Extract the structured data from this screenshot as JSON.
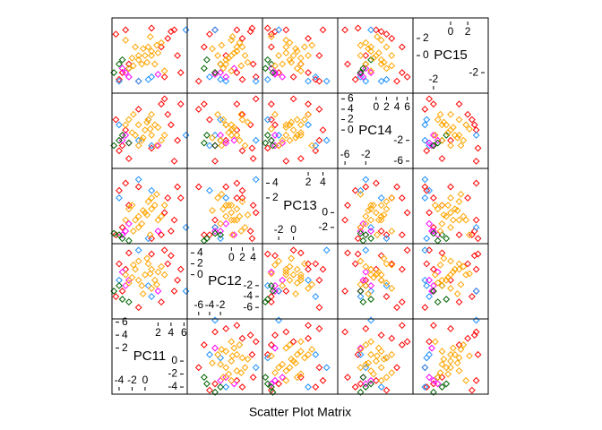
{
  "chart_data": {
    "type": "splom",
    "title": "Scatter Plot Matrix",
    "variables": [
      "PC11",
      "PC12",
      "PC13",
      "PC14",
      "PC15"
    ],
    "axes": [
      {
        "lim": [
          -5.1,
          6.5
        ],
        "upper_ticks": [
          2,
          4,
          6
        ],
        "lower_ticks": [
          -4,
          -2,
          0
        ]
      },
      {
        "lim": [
          -8.1,
          5.7
        ],
        "upper_ticks": [
          0,
          2,
          4
        ],
        "lower_ticks": [
          -6,
          -4,
          -2
        ]
      },
      {
        "lim": [
          -4.2,
          6.0
        ],
        "upper_ticks": [
          2,
          4
        ],
        "lower_ticks": [
          -2,
          0
        ]
      },
      {
        "lim": [
          -7.4,
          7.1
        ],
        "upper_ticks": [
          0,
          2,
          4,
          6
        ],
        "lower_ticks": [
          -6,
          -2
        ]
      },
      {
        "lim": [
          -4.4,
          4.4
        ],
        "upper_ticks": [
          0,
          2
        ],
        "lower_ticks": [
          -2
        ]
      }
    ],
    "series": [
      {
        "color": "#FF0000",
        "values": [
          [
            3.5,
            2,
            2,
            3,
            2
          ],
          [
            -3.5,
            -3,
            -2,
            -3,
            -2
          ],
          [
            4,
            3.5,
            -2.5,
            1,
            2.8
          ],
          [
            -4,
            2,
            3,
            -4,
            -2.8
          ],
          [
            2.5,
            -5,
            -3,
            5,
            1
          ],
          [
            -2.5,
            4,
            1,
            -5.5,
            -1
          ],
          [
            5,
            -1,
            3.5,
            -2,
            0
          ],
          [
            -4.5,
            -4,
            -3,
            2,
            2.5
          ],
          [
            3,
            4.5,
            0,
            6,
            -2.5
          ],
          [
            4.5,
            -3,
            -1,
            -6,
            3
          ],
          [
            -1,
            -6,
            3.5,
            4,
            -3
          ],
          [
            1,
            3.8,
            -3.5,
            -3.5,
            3.2
          ],
          [
            5.5,
            1,
            2,
            5,
            -2
          ],
          [
            -3,
            1,
            4,
            0,
            3
          ]
        ]
      },
      {
        "color": "#1E90FF",
        "values": [
          [
            6.3,
            -3,
            -2,
            -1,
            3
          ],
          [
            -1,
            4.5,
            4.5,
            -2,
            -3
          ],
          [
            0.5,
            -2,
            -3.5,
            2,
            -2.8
          ],
          [
            1,
            -4,
            3,
            -3,
            -2.5
          ],
          [
            -4,
            -1,
            2,
            1,
            -3
          ]
        ]
      },
      {
        "color": "#FF00FF",
        "values": [
          [
            -2.5,
            -1,
            -1.5,
            -2.5,
            -2.5
          ],
          [
            -3,
            -2,
            -2.5,
            -1,
            -2
          ],
          [
            2,
            -3,
            -2.5,
            -3,
            -2.2
          ],
          [
            -3.5,
            0.5,
            -3,
            -2,
            -1.5
          ]
        ]
      },
      {
        "color": "#006400",
        "values": [
          [
            -4,
            -2,
            -3,
            -2,
            -1
          ],
          [
            -3.5,
            -4.5,
            -3.5,
            -1,
            -0.5
          ],
          [
            -4.8,
            -3,
            -2.8,
            -3,
            -2
          ],
          [
            -2.5,
            -5,
            -3.8,
            -2.5,
            -1.5
          ]
        ]
      },
      {
        "color": "#FFA500",
        "values": [
          [
            0,
            0,
            0,
            0,
            0
          ],
          [
            1,
            1,
            0.5,
            -1,
            0.5
          ],
          [
            -1,
            -1,
            -0.5,
            1,
            -0.5
          ],
          [
            1.5,
            -1,
            1,
            1,
            -1
          ],
          [
            -1.5,
            1,
            -1,
            -1,
            1
          ],
          [
            2,
            0.5,
            -1,
            0.5,
            0.3
          ],
          [
            -2,
            -0.5,
            1,
            -0.5,
            -0.3
          ],
          [
            0.5,
            2,
            1.5,
            2,
            1
          ],
          [
            -0.5,
            -2,
            -1.5,
            -2,
            -1
          ],
          [
            2.5,
            1.5,
            -0.5,
            -2,
            1.5
          ],
          [
            -2.5,
            -1.5,
            0.5,
            2,
            -1.5
          ],
          [
            1,
            -2.5,
            2,
            3,
            0
          ],
          [
            -1,
            2.5,
            -2,
            -3,
            0
          ],
          [
            3,
            0,
            1,
            -1,
            -1.8
          ],
          [
            -3,
            0,
            -1,
            1,
            1.8
          ],
          [
            0.3,
            3,
            -0.3,
            1.5,
            -0.8
          ],
          [
            -0.3,
            -3.5,
            0.3,
            -1.5,
            0.8
          ],
          [
            1.8,
            -1.8,
            2.5,
            -3,
            1.2
          ],
          [
            -1.8,
            1.8,
            -2.5,
            3,
            -1.2
          ],
          [
            0.8,
            0.2,
            -3,
            0.2,
            2.2
          ]
        ]
      }
    ]
  }
}
